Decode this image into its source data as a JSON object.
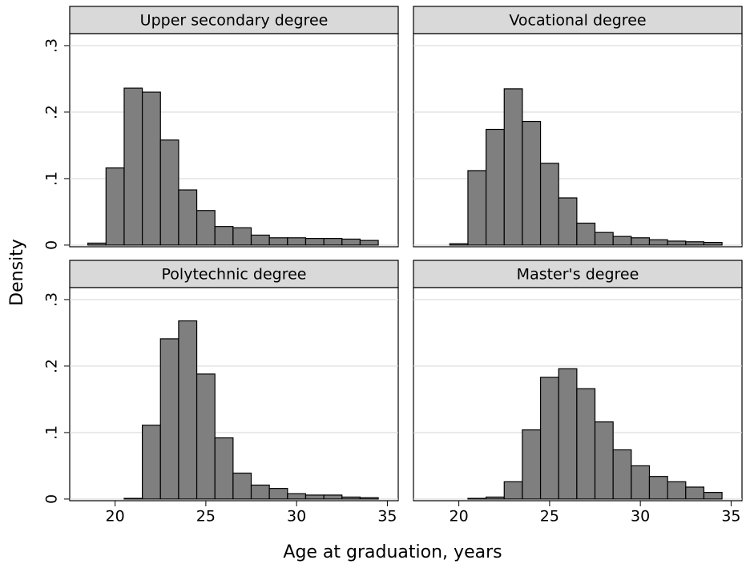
{
  "xlabel": "Age at graduation, years",
  "ylabel": "Density",
  "chart_data": [
    {
      "type": "histogram",
      "title": "Upper secondary degree",
      "bins": [
        18.5,
        19.5,
        20.5,
        21.5,
        22.5,
        23.5,
        24.5,
        25.5,
        26.5,
        27.5,
        28.5,
        29.5,
        30.5,
        31.5,
        32.5,
        33.5,
        34.5
      ],
      "values": [
        0.003,
        0.116,
        0.236,
        0.23,
        0.158,
        0.083,
        0.052,
        0.028,
        0.026,
        0.015,
        0.011,
        0.011,
        0.01,
        0.01,
        0.009,
        0.007
      ],
      "color": "#7f7f7f",
      "xlim": [
        17.5,
        35.6
      ],
      "ylim": [
        -0.0025,
        0.318
      ],
      "yticks": [
        0,
        {
          "value": 0.1,
          "label": ".1"
        },
        {
          "value": 0.2,
          "label": ".2"
        },
        {
          "value": 0.3,
          "label": ".3"
        }
      ],
      "grid": true
    },
    {
      "type": "histogram",
      "title": "Vocational degree",
      "bins": [
        19.5,
        20.5,
        21.5,
        22.5,
        23.5,
        24.5,
        25.5,
        26.5,
        27.5,
        28.5,
        29.5,
        30.5,
        31.5,
        32.5,
        33.5,
        34.5
      ],
      "values": [
        0.002,
        0.112,
        0.174,
        0.235,
        0.186,
        0.123,
        0.071,
        0.033,
        0.019,
        0.013,
        0.011,
        0.008,
        0.006,
        0.005,
        0.004
      ],
      "color": "#7f7f7f",
      "xlim": [
        17.5,
        35.6
      ],
      "ylim": [
        -0.0025,
        0.318
      ],
      "yticks": [
        0,
        0.1,
        0.2,
        0.3
      ],
      "grid": true
    },
    {
      "type": "histogram",
      "title": "Polytechnic degree",
      "bins": [
        20.5,
        21.5,
        22.5,
        23.5,
        24.5,
        25.5,
        26.5,
        27.5,
        28.5,
        29.5,
        30.5,
        31.5,
        32.5,
        33.5,
        34.5
      ],
      "values": [
        0.001,
        0.111,
        0.241,
        0.268,
        0.188,
        0.092,
        0.039,
        0.021,
        0.016,
        0.008,
        0.006,
        0.006,
        0.003,
        0.002
      ],
      "color": "#7f7f7f",
      "xlim": [
        17.5,
        35.6
      ],
      "ylim": [
        -0.0025,
        0.318
      ],
      "xticks": [
        20,
        25,
        30,
        35
      ],
      "yticks": [
        0,
        {
          "value": 0.1,
          "label": ".1"
        },
        {
          "value": 0.2,
          "label": ".2"
        },
        {
          "value": 0.3,
          "label": ".3"
        }
      ],
      "grid": true
    },
    {
      "type": "histogram",
      "title": "Master's degree",
      "bins": [
        20.5,
        21.5,
        22.5,
        23.5,
        24.5,
        25.5,
        26.5,
        27.5,
        28.5,
        29.5,
        30.5,
        31.5,
        32.5,
        33.5,
        34.5
      ],
      "values": [
        0.001,
        0.003,
        0.026,
        0.104,
        0.183,
        0.196,
        0.166,
        0.116,
        0.074,
        0.05,
        0.034,
        0.026,
        0.018,
        0.01
      ],
      "color": "#7f7f7f",
      "xlim": [
        17.5,
        35.6
      ],
      "ylim": [
        -0.0025,
        0.318
      ],
      "xticks": [
        20,
        25,
        30,
        35
      ],
      "yticks": [
        0,
        0.1,
        0.2,
        0.3
      ],
      "grid": true
    }
  ]
}
